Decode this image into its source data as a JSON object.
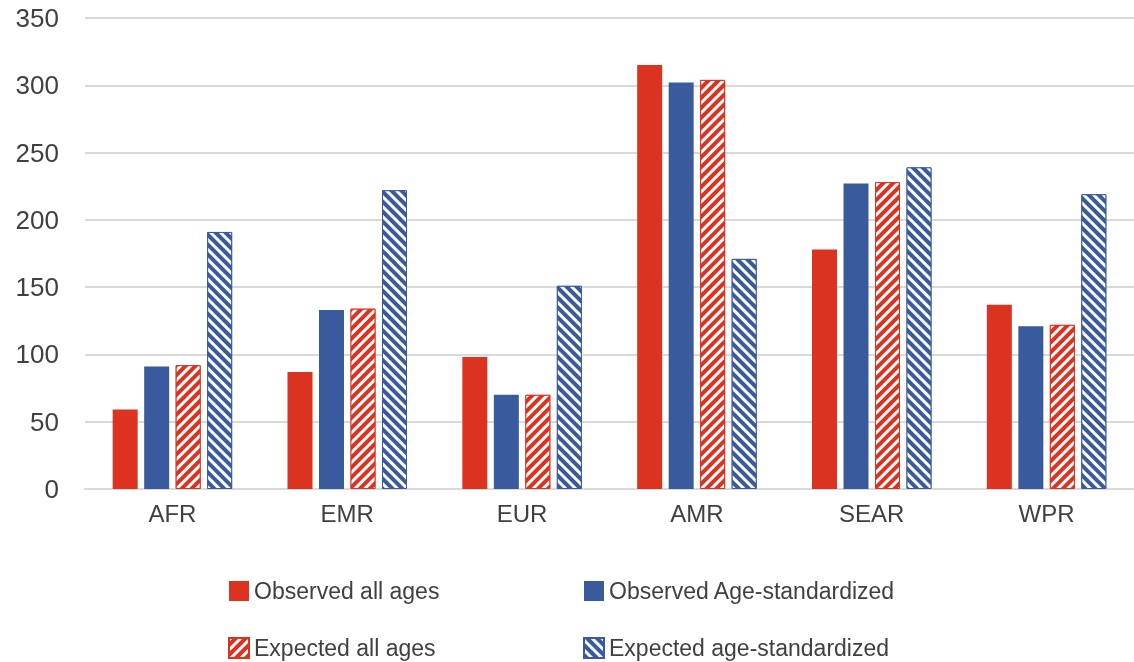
{
  "chart_data": {
    "type": "bar",
    "categories": [
      "AFR",
      "EMR",
      "EUR",
      "AMR",
      "SEAR",
      "WPR"
    ],
    "series": [
      {
        "name": "Observed all ages",
        "color": "#dc3220",
        "values": [
          59,
          87,
          98,
          315,
          178,
          137
        ]
      },
      {
        "name": "Observed Age-standardized",
        "color": "#3a5a9e",
        "values": [
          91,
          133,
          70,
          302,
          227,
          121
        ]
      },
      {
        "name": "Expected all ages",
        "color": "#dc3220",
        "values": [
          92,
          134,
          70,
          304,
          228,
          122
        ]
      },
      {
        "name": "Expected age-standardized",
        "color": "#3a5a9e",
        "values": [
          191,
          222,
          151,
          171,
          239,
          219
        ]
      }
    ],
    "ylim": [
      0,
      350
    ],
    "yticks": [
      0,
      50,
      100,
      150,
      200,
      250,
      300,
      350
    ],
    "grid": "y",
    "legend": "bottom"
  }
}
